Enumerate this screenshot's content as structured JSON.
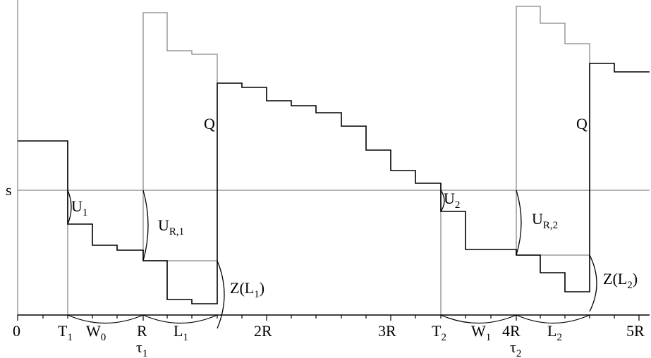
{
  "diagram": {
    "threshold_label": "s",
    "x_ticks": {
      "zero": "0",
      "t1": {
        "base": "T",
        "sub": "1"
      },
      "w0": {
        "base": "W",
        "sub": "0"
      },
      "r": "R",
      "tau1": {
        "base": "τ",
        "sub": "1"
      },
      "l1": {
        "base": "L",
        "sub": "1"
      },
      "two_r": "2R",
      "three_r": "3R",
      "t2": {
        "base": "T",
        "sub": "2"
      },
      "w1": {
        "base": "W",
        "sub": "1"
      },
      "four_r": "4R",
      "tau2": {
        "base": "τ",
        "sub": "2"
      },
      "l2": {
        "base": "L",
        "sub": "2"
      },
      "five_r": "5R"
    },
    "annotations": {
      "u1": {
        "base": "U",
        "sub": "1"
      },
      "ur1": {
        "base": "U",
        "sub": "R,1"
      },
      "z1": {
        "pre": "Z(L",
        "sub": "1",
        "post": ")"
      },
      "q1": "Q",
      "u2": {
        "base": "U",
        "sub": "2"
      },
      "ur2": {
        "base": "U",
        "sub": "R,2"
      },
      "z2": {
        "pre": "Z(L",
        "sub": "2",
        "post": ")"
      },
      "q2": "Q"
    },
    "colors": {
      "main_path": "#000000",
      "auxiliary": "#9a9a9a",
      "axis": "#000000"
    }
  }
}
